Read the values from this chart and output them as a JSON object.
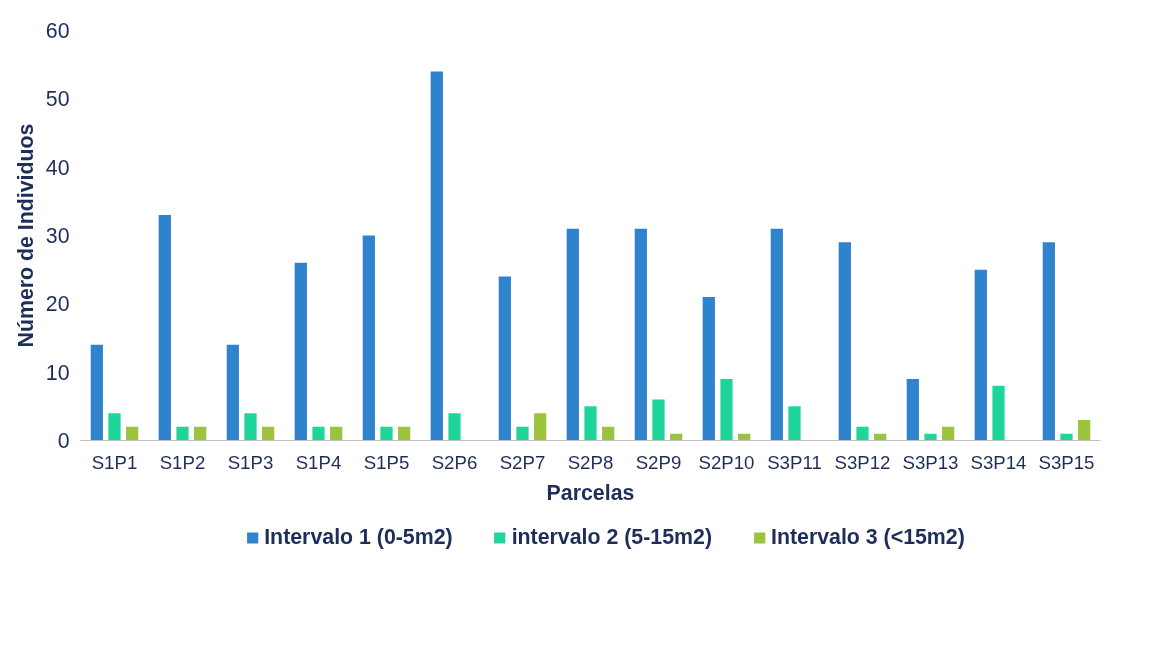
{
  "chart_data": {
    "type": "bar",
    "xlabel": "Parcelas",
    "ylabel": "Número de Individuos",
    "categories": [
      "S1P1",
      "S1P2",
      "S1P3",
      "S1P4",
      "S1P5",
      "S2P6",
      "S2P7",
      "S2P8",
      "S2P9",
      "S2P10",
      "S3P11",
      "S3P12",
      "S3P13",
      "S3P14",
      "S3P15"
    ],
    "series": [
      {
        "name": "Intervalo 1 (0-5m2)",
        "color": "#2e83cc",
        "values": [
          14,
          33,
          14,
          26,
          30,
          54,
          24,
          31,
          31,
          21,
          31,
          29,
          9,
          25,
          29
        ]
      },
      {
        "name": "intervalo 2 (5-15m2)",
        "color": "#1fd59c",
        "values": [
          4,
          2,
          4,
          2,
          2,
          4,
          2,
          5,
          6,
          9,
          5,
          2,
          1,
          8,
          1
        ]
      },
      {
        "name": "Intervalo 3 (<15m2)",
        "color": "#9cc33c",
        "values": [
          2,
          2,
          2,
          2,
          2,
          0,
          4,
          2,
          1,
          1,
          0,
          1,
          2,
          0,
          3
        ]
      }
    ],
    "ylim": [
      0,
      60
    ],
    "yticks": [
      0,
      10,
      20,
      30,
      40,
      50,
      60
    ],
    "legend": "bottom"
  }
}
